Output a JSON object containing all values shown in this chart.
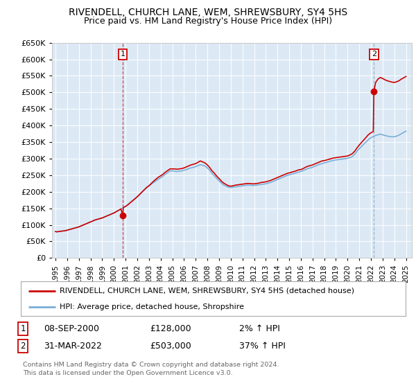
{
  "title": "RIVENDELL, CHURCH LANE, WEM, SHREWSBURY, SY4 5HS",
  "subtitle": "Price paid vs. HM Land Registry's House Price Index (HPI)",
  "legend_line1": "RIVENDELL, CHURCH LANE, WEM, SHREWSBURY, SY4 5HS (detached house)",
  "legend_line2": "HPI: Average price, detached house, Shropshire",
  "copyright": "Contains HM Land Registry data © Crown copyright and database right 2024.\nThis data is licensed under the Open Government Licence v3.0.",
  "sale1_year": 2000.75,
  "sale1_price": 128000,
  "sale2_year": 2022.25,
  "sale2_price": 503000,
  "ylim": [
    0,
    650000
  ],
  "xlim_start": 1994.7,
  "xlim_end": 2025.5,
  "bg_color": "#dce9f5",
  "red_color": "#cc0000",
  "blue_color": "#7aaed6",
  "hpi_years": [
    1995.0,
    1995.1,
    1995.2,
    1995.3,
    1995.4,
    1995.5,
    1995.6,
    1995.7,
    1995.8,
    1995.9,
    1996.0,
    1996.1,
    1996.2,
    1996.3,
    1996.4,
    1996.5,
    1996.6,
    1996.7,
    1996.8,
    1996.9,
    1997.0,
    1997.2,
    1997.4,
    1997.6,
    1997.8,
    1998.0,
    1998.2,
    1998.4,
    1998.6,
    1998.8,
    1999.0,
    1999.2,
    1999.4,
    1999.6,
    1999.8,
    2000.0,
    2000.2,
    2000.4,
    2000.6,
    2000.8,
    2001.0,
    2001.2,
    2001.4,
    2001.6,
    2001.8,
    2002.0,
    2002.2,
    2002.4,
    2002.6,
    2002.8,
    2003.0,
    2003.2,
    2003.4,
    2003.6,
    2003.8,
    2004.0,
    2004.2,
    2004.4,
    2004.6,
    2004.8,
    2005.0,
    2005.2,
    2005.4,
    2005.6,
    2005.8,
    2006.0,
    2006.2,
    2006.4,
    2006.6,
    2006.8,
    2007.0,
    2007.2,
    2007.4,
    2007.6,
    2007.8,
    2008.0,
    2008.2,
    2008.4,
    2008.6,
    2008.8,
    2009.0,
    2009.2,
    2009.4,
    2009.6,
    2009.8,
    2010.0,
    2010.2,
    2010.4,
    2010.6,
    2010.8,
    2011.0,
    2011.2,
    2011.4,
    2011.6,
    2011.8,
    2012.0,
    2012.2,
    2012.4,
    2012.6,
    2012.8,
    2013.0,
    2013.2,
    2013.4,
    2013.6,
    2013.8,
    2014.0,
    2014.2,
    2014.4,
    2014.6,
    2014.8,
    2015.0,
    2015.2,
    2015.4,
    2015.6,
    2015.8,
    2016.0,
    2016.2,
    2016.4,
    2016.6,
    2016.8,
    2017.0,
    2017.2,
    2017.4,
    2017.6,
    2017.8,
    2018.0,
    2018.2,
    2018.4,
    2018.6,
    2018.8,
    2019.0,
    2019.2,
    2019.4,
    2019.6,
    2019.8,
    2020.0,
    2020.2,
    2020.4,
    2020.6,
    2020.8,
    2021.0,
    2021.2,
    2021.4,
    2021.6,
    2021.8,
    2022.0,
    2022.2,
    2022.4,
    2022.6,
    2022.8,
    2023.0,
    2023.2,
    2023.4,
    2023.6,
    2023.8,
    2024.0,
    2024.2,
    2024.4,
    2024.6,
    2024.8,
    2025.0
  ],
  "hpi_values": [
    80000,
    79000,
    79500,
    80000,
    80500,
    81000,
    81500,
    82000,
    82500,
    83000,
    84000,
    85000,
    86000,
    87000,
    88000,
    89000,
    90000,
    91000,
    92000,
    93000,
    94000,
    97000,
    100000,
    103000,
    106000,
    109000,
    112000,
    115000,
    117000,
    119000,
    121000,
    124000,
    127000,
    130000,
    133000,
    136000,
    140000,
    144000,
    148000,
    152000,
    156000,
    161000,
    167000,
    173000,
    179000,
    185000,
    192000,
    199000,
    206000,
    213000,
    218000,
    223000,
    228000,
    233000,
    238000,
    242000,
    247000,
    253000,
    258000,
    263000,
    263000,
    262000,
    261000,
    262000,
    263000,
    265000,
    267000,
    270000,
    272000,
    274000,
    276000,
    279000,
    282000,
    280000,
    278000,
    272000,
    265000,
    255000,
    248000,
    240000,
    233000,
    226000,
    220000,
    217000,
    214000,
    213000,
    214000,
    215000,
    216000,
    217000,
    218000,
    219000,
    220000,
    220000,
    219000,
    219000,
    220000,
    221000,
    222000,
    223000,
    224000,
    226000,
    228000,
    231000,
    234000,
    237000,
    240000,
    243000,
    246000,
    249000,
    251000,
    253000,
    255000,
    257000,
    259000,
    261000,
    264000,
    267000,
    270000,
    272000,
    274000,
    277000,
    280000,
    283000,
    285000,
    287000,
    289000,
    291000,
    293000,
    295000,
    296000,
    297000,
    298000,
    299000,
    300000,
    301000,
    303000,
    306000,
    313000,
    322000,
    330000,
    337000,
    344000,
    351000,
    358000,
    363000,
    367000,
    370000,
    372000,
    374000,
    372000,
    370000,
    368000,
    367000,
    366000,
    366000,
    368000,
    371000,
    375000,
    379000,
    383000
  ],
  "prop_years": [
    1995.0,
    1995.1,
    1995.2,
    1995.3,
    1995.4,
    1995.5,
    1995.6,
    1995.7,
    1995.8,
    1995.9,
    1996.0,
    1996.1,
    1996.2,
    1996.3,
    1996.4,
    1996.5,
    1996.6,
    1996.7,
    1996.8,
    1996.9,
    1997.0,
    1997.2,
    1997.4,
    1997.6,
    1997.8,
    1998.0,
    1998.2,
    1998.4,
    1998.6,
    1998.8,
    1999.0,
    1999.2,
    1999.4,
    1999.6,
    1999.8,
    2000.0,
    2000.2,
    2000.4,
    2000.6,
    2000.75,
    2000.8,
    2001.0,
    2001.2,
    2001.4,
    2001.6,
    2001.8,
    2002.0,
    2002.2,
    2002.4,
    2002.6,
    2002.8,
    2003.0,
    2003.2,
    2003.4,
    2003.6,
    2003.8,
    2004.0,
    2004.2,
    2004.4,
    2004.6,
    2004.8,
    2005.0,
    2005.2,
    2005.4,
    2005.6,
    2005.8,
    2006.0,
    2006.2,
    2006.4,
    2006.6,
    2006.8,
    2007.0,
    2007.2,
    2007.4,
    2007.6,
    2007.8,
    2008.0,
    2008.2,
    2008.4,
    2008.6,
    2008.8,
    2009.0,
    2009.2,
    2009.4,
    2009.6,
    2009.8,
    2010.0,
    2010.2,
    2010.4,
    2010.6,
    2010.8,
    2011.0,
    2011.2,
    2011.4,
    2011.6,
    2011.8,
    2012.0,
    2012.2,
    2012.4,
    2012.6,
    2012.8,
    2013.0,
    2013.2,
    2013.4,
    2013.6,
    2013.8,
    2014.0,
    2014.2,
    2014.4,
    2014.6,
    2014.8,
    2015.0,
    2015.2,
    2015.4,
    2015.6,
    2015.8,
    2016.0,
    2016.2,
    2016.4,
    2016.6,
    2016.8,
    2017.0,
    2017.2,
    2017.4,
    2017.6,
    2017.8,
    2018.0,
    2018.2,
    2018.4,
    2018.6,
    2018.8,
    2019.0,
    2019.2,
    2019.4,
    2019.6,
    2019.8,
    2020.0,
    2020.2,
    2020.4,
    2020.6,
    2020.8,
    2021.0,
    2021.2,
    2021.4,
    2021.6,
    2021.8,
    2022.0,
    2022.2,
    2022.25,
    2022.4,
    2022.6,
    2022.8,
    2023.0,
    2023.2,
    2023.4,
    2023.6,
    2023.8,
    2024.0,
    2024.2,
    2024.4,
    2024.6,
    2024.8,
    2025.0
  ],
  "prop_values": [
    80000,
    79000,
    79500,
    80000,
    80500,
    81000,
    81500,
    82000,
    82500,
    83000,
    84000,
    85000,
    86000,
    87000,
    88000,
    89000,
    90000,
    91000,
    92000,
    93000,
    94000,
    97000,
    100000,
    103000,
    106000,
    109000,
    112000,
    115000,
    117000,
    119000,
    121000,
    124000,
    127000,
    130000,
    133000,
    136000,
    140000,
    144000,
    148000,
    128000,
    152000,
    156000,
    161000,
    167000,
    173000,
    179000,
    185000,
    192000,
    199000,
    206000,
    213000,
    218000,
    225000,
    232000,
    238000,
    244000,
    248000,
    253000,
    259000,
    264000,
    269000,
    269000,
    269000,
    268000,
    269000,
    270000,
    272000,
    275000,
    278000,
    281000,
    283000,
    285000,
    289000,
    293000,
    290000,
    287000,
    281000,
    273000,
    263000,
    256000,
    247000,
    240000,
    232000,
    226000,
    222000,
    218000,
    217000,
    218000,
    220000,
    221000,
    222000,
    223000,
    224000,
    225000,
    225000,
    224000,
    224000,
    225000,
    226000,
    228000,
    229000,
    230000,
    232000,
    234000,
    237000,
    240000,
    243000,
    246000,
    249000,
    252000,
    255000,
    257000,
    259000,
    261000,
    263000,
    266000,
    267000,
    270000,
    274000,
    277000,
    279000,
    281000,
    284000,
    287000,
    290000,
    293000,
    294000,
    296000,
    298000,
    300000,
    302000,
    303000,
    304000,
    305000,
    306000,
    307000,
    308000,
    311000,
    315000,
    322000,
    332000,
    341000,
    349000,
    357000,
    365000,
    373000,
    378000,
    382000,
    503000,
    530000,
    540000,
    545000,
    542000,
    538000,
    535000,
    533000,
    531000,
    530000,
    532000,
    535000,
    540000,
    544000,
    548000
  ],
  "yticks": [
    0,
    50000,
    100000,
    150000,
    200000,
    250000,
    300000,
    350000,
    400000,
    450000,
    500000,
    550000,
    600000,
    650000
  ],
  "xticks": [
    1995,
    1996,
    1997,
    1998,
    1999,
    2000,
    2001,
    2002,
    2003,
    2004,
    2005,
    2006,
    2007,
    2008,
    2009,
    2010,
    2011,
    2012,
    2013,
    2014,
    2015,
    2016,
    2017,
    2018,
    2019,
    2020,
    2021,
    2022,
    2023,
    2024,
    2025
  ]
}
